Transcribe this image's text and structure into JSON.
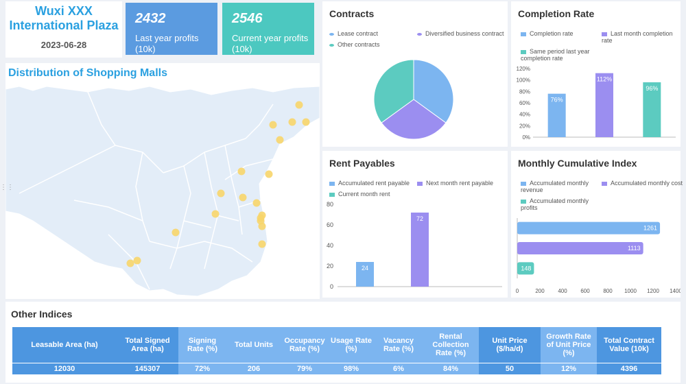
{
  "header": {
    "title_line1": "Wuxi XXX",
    "title_line2": "International Plaza",
    "date": "2023-06-28",
    "kpis": [
      {
        "value": "2432",
        "label": "Last year profits (10k)",
        "color": "#5b9be0"
      },
      {
        "value": "2546",
        "label": "Current year profits (10k)",
        "color": "#4cc8c0"
      }
    ]
  },
  "map": {
    "title": "Distribution of Shopping Malls",
    "colors": {
      "land": "#e3edf8",
      "border": "#ffffff",
      "marker": "#f7d56a"
    }
  },
  "contracts": {
    "title": "Contracts",
    "legend": [
      {
        "label": "Lease contract",
        "color": "#7cb5f0"
      },
      {
        "label": "Diversified business contract",
        "color": "#9b8ef0"
      },
      {
        "label": "Other contracts",
        "color": "#5ccbc0"
      }
    ]
  },
  "completion": {
    "title": "Completion Rate",
    "legend": [
      {
        "label": "Completion rate",
        "color": "#7cb5f0"
      },
      {
        "label": "Last month completion rate",
        "color": "#9b8ef0"
      },
      {
        "label": "Same period last year completion rate",
        "color": "#5ccbc0"
      }
    ],
    "yticks": [
      "120%",
      "100%",
      "80%",
      "60%",
      "40%",
      "20%",
      "0%"
    ]
  },
  "rent": {
    "title": "Rent Payables",
    "legend": [
      {
        "label": "Accumulated rent payable",
        "color": "#7cb5f0"
      },
      {
        "label": "Next month rent payable",
        "color": "#9b8ef0"
      },
      {
        "label": "Current month rent",
        "color": "#5ccbc0"
      }
    ],
    "yticks": [
      "80",
      "60",
      "40",
      "20",
      "0"
    ]
  },
  "monthly": {
    "title": "Monthly Cumulative Index",
    "legend": [
      {
        "label": "Accumulated monthly revenue",
        "color": "#7cb5f0"
      },
      {
        "label": "Accumulated monthly cost",
        "color": "#9b8ef0"
      },
      {
        "label": "Accumulated monthly profits",
        "color": "#5ccbc0"
      }
    ],
    "xticks": [
      "0",
      "200",
      "400",
      "600",
      "800",
      "1000",
      "1200",
      "1400"
    ]
  },
  "indices": {
    "title": "Other Indices",
    "headers": [
      "Leasable Area (ha)",
      "Total Signed Area (ha)",
      "Signing Rate (%)",
      "Total Units",
      "Occupancy Rate (%)",
      "Usage Rate (%)",
      "Vacancy Rate (%)",
      "Rental Collection Rate (%)",
      "Unit Price ($/ha/d)",
      "Growth Rate of Unit Price (%)",
      "Total Contract Value (10k)"
    ],
    "values": [
      "12030",
      "145307",
      "72%",
      "206",
      "79%",
      "98%",
      "6%",
      "84%",
      "50",
      "12%",
      "4396"
    ]
  },
  "chart_data": [
    {
      "type": "pie",
      "title": "Contracts",
      "categories": [
        "Lease contract",
        "Diversified business contract",
        "Other contracts"
      ],
      "values": [
        35,
        30,
        35
      ]
    },
    {
      "type": "bar",
      "title": "Completion Rate",
      "categories": [
        "Completion rate",
        "Last month completion rate",
        "Same period last year completion rate"
      ],
      "values": [
        76,
        112,
        96
      ],
      "labels": [
        "76%",
        "112%",
        "96%"
      ],
      "ylim": [
        0,
        120
      ]
    },
    {
      "type": "bar",
      "title": "Rent Payables",
      "categories": [
        "Accumulated rent payable",
        "Next month rent payable",
        "Current month rent"
      ],
      "values": [
        24,
        72,
        0
      ],
      "ylim": [
        0,
        80
      ]
    },
    {
      "type": "bar",
      "orientation": "horizontal",
      "title": "Monthly Cumulative Index",
      "categories": [
        "Accumulated monthly revenue",
        "Accumulated monthly cost",
        "Accumulated monthly profits"
      ],
      "values": [
        1261,
        1113,
        148
      ],
      "xlim": [
        0,
        1400
      ]
    }
  ]
}
